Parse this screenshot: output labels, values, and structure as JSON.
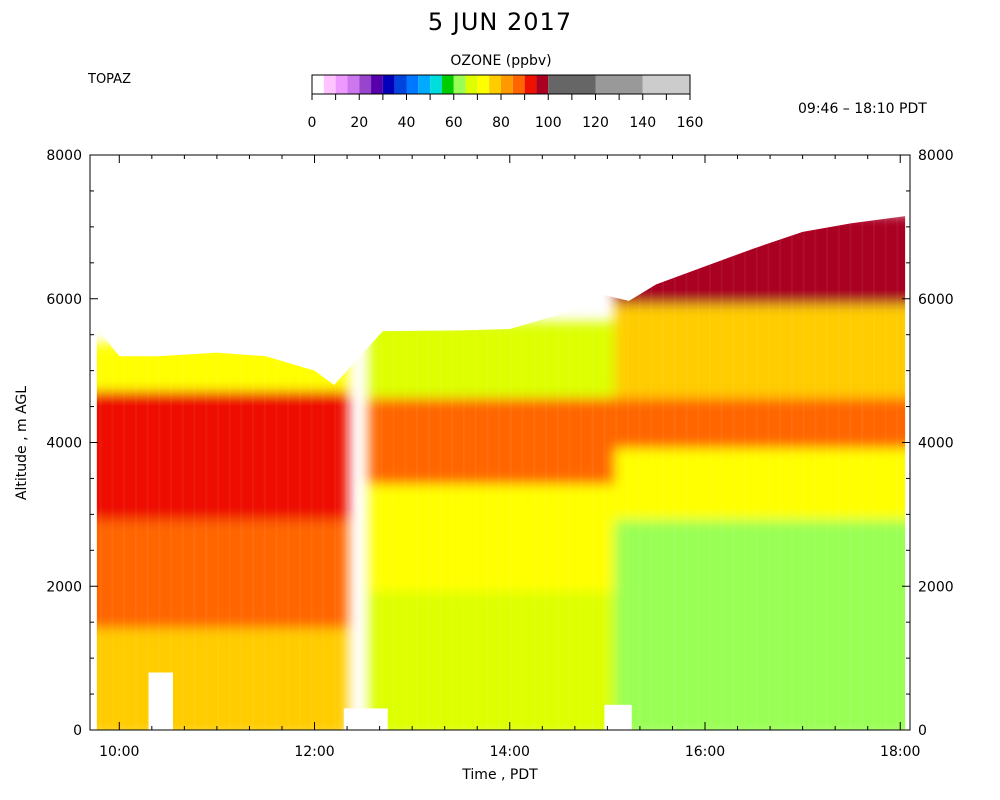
{
  "title": "5 JUN 2017",
  "instrument": "TOPAZ",
  "time_range": "09:46 – 18:10 PDT",
  "colorbar": {
    "title": "OZONE (ppbv)",
    "ticks": [
      0,
      20,
      40,
      60,
      80,
      100,
      120,
      140,
      160
    ],
    "range": [
      0,
      160
    ],
    "bins": [
      {
        "from": 0,
        "to": 5,
        "color": "#ffffff"
      },
      {
        "from": 5,
        "to": 10,
        "color": "#ffc4ff"
      },
      {
        "from": 10,
        "to": 15,
        "color": "#ee99ff"
      },
      {
        "from": 15,
        "to": 20,
        "color": "#cc77ee"
      },
      {
        "from": 20,
        "to": 25,
        "color": "#9944cc"
      },
      {
        "from": 25,
        "to": 30,
        "color": "#5500aa"
      },
      {
        "from": 30,
        "to": 35,
        "color": "#0000bb"
      },
      {
        "from": 35,
        "to": 40,
        "color": "#0044dd"
      },
      {
        "from": 40,
        "to": 45,
        "color": "#0077ff"
      },
      {
        "from": 45,
        "to": 50,
        "color": "#00aaff"
      },
      {
        "from": 50,
        "to": 55,
        "color": "#00dddd"
      },
      {
        "from": 55,
        "to": 60,
        "color": "#00cc00"
      },
      {
        "from": 60,
        "to": 65,
        "color": "#99ff55"
      },
      {
        "from": 65,
        "to": 70,
        "color": "#ddff00"
      },
      {
        "from": 70,
        "to": 75,
        "color": "#ffff00"
      },
      {
        "from": 75,
        "to": 80,
        "color": "#ffcc00"
      },
      {
        "from": 80,
        "to": 85,
        "color": "#ff9900"
      },
      {
        "from": 85,
        "to": 90,
        "color": "#ff6600"
      },
      {
        "from": 90,
        "to": 95,
        "color": "#ee1100"
      },
      {
        "from": 95,
        "to": 100,
        "color": "#aa0022"
      },
      {
        "from": 100,
        "to": 120,
        "color": "#666666"
      },
      {
        "from": 120,
        "to": 140,
        "color": "#999999"
      },
      {
        "from": 140,
        "to": 160,
        "color": "#cccccc"
      }
    ]
  },
  "chart_data": {
    "type": "heatmap",
    "title": "5 JUN 2017",
    "xlabel": "Time , PDT",
    "ylabel": "Altitude , m AGL",
    "x_range_hours": [
      9.7,
      18.1
    ],
    "xlim_labels": [
      "09:46",
      "18:10"
    ],
    "x_ticks": [
      "10:00",
      "12:00",
      "14:00",
      "16:00",
      "18:00"
    ],
    "x_tick_hours": [
      10,
      12,
      14,
      16,
      18
    ],
    "ylim": [
      0,
      8000
    ],
    "y_ticks": [
      0,
      2000,
      4000,
      6000,
      8000
    ],
    "units": "ppbv",
    "profiles": [
      {
        "time": 9.77,
        "top": 5600,
        "bottom": 0
      },
      {
        "time": 10.0,
        "top": 5200,
        "bottom": 0
      },
      {
        "time": 10.4,
        "top": 5200,
        "bottom": 0
      },
      {
        "time": 11.0,
        "top": 5250,
        "bottom": 0
      },
      {
        "time": 11.5,
        "top": 5200,
        "bottom": 0
      },
      {
        "time": 12.0,
        "top": 5000,
        "bottom": 0
      },
      {
        "time": 12.2,
        "top": 4800,
        "bottom": 0
      },
      {
        "time": 12.7,
        "top": 5550,
        "bottom": 0
      },
      {
        "time": 13.5,
        "top": 5560,
        "bottom": 0
      },
      {
        "time": 14.0,
        "top": 5580,
        "bottom": 0
      },
      {
        "time": 14.5,
        "top": 5780,
        "bottom": 0
      },
      {
        "time": 14.97,
        "top": 6050,
        "bottom": 0
      },
      {
        "time": 15.22,
        "top": 5970,
        "bottom": 0
      },
      {
        "time": 15.5,
        "top": 6200,
        "bottom": 0
      },
      {
        "time": 16.0,
        "top": 6450,
        "bottom": 0
      },
      {
        "time": 16.5,
        "top": 6700,
        "bottom": 0
      },
      {
        "time": 17.0,
        "top": 6930,
        "bottom": 0
      },
      {
        "time": 17.5,
        "top": 7050,
        "bottom": 0
      },
      {
        "time": 18.05,
        "top": 7150,
        "bottom": 0
      }
    ],
    "ozone_layers": [
      {
        "segment": "09:46-12:20",
        "altitude_range": [
          0,
          1500
        ],
        "ozone_ppbv": 75
      },
      {
        "segment": "09:46-12:20",
        "altitude_range": [
          1500,
          3000
        ],
        "ozone_ppbv": 85
      },
      {
        "segment": "09:46-12:20",
        "altitude_range": [
          3000,
          4800
        ],
        "ozone_ppbv": 92
      },
      {
        "segment": "09:46-12:20",
        "altitude_range": [
          4800,
          5300
        ],
        "ozone_ppbv": 70
      },
      {
        "segment": "12:42-15:00",
        "altitude_range": [
          0,
          2000
        ],
        "ozone_ppbv": 65
      },
      {
        "segment": "12:42-15:00",
        "altitude_range": [
          2000,
          3500
        ],
        "ozone_ppbv": 72
      },
      {
        "segment": "12:42-15:00",
        "altitude_range": [
          3500,
          4700
        ],
        "ozone_ppbv": 85
      },
      {
        "segment": "12:42-15:00",
        "altitude_range": [
          4700,
          5600
        ],
        "ozone_ppbv": 65
      },
      {
        "segment": "15:20-18:05",
        "altitude_range": [
          0,
          3000
        ],
        "ozone_ppbv": 62
      },
      {
        "segment": "15:20-18:05",
        "altitude_range": [
          3000,
          4000
        ],
        "ozone_ppbv": 72
      },
      {
        "segment": "15:20-18:05",
        "altitude_range": [
          4000,
          4700
        ],
        "ozone_ppbv": 86
      },
      {
        "segment": "15:20-18:05",
        "altitude_range": [
          4700,
          6000
        ],
        "ozone_ppbv": 75
      },
      {
        "segment": "15:20-18:05",
        "altitude_range": [
          6000,
          7100
        ],
        "ozone_ppbv": 95
      }
    ],
    "gaps": [
      {
        "time_range": [
          10.3,
          10.55
        ],
        "altitude_range": [
          0,
          800
        ]
      },
      {
        "time_range": [
          12.3,
          12.75
        ],
        "altitude_range": [
          0,
          300
        ]
      },
      {
        "time_range": [
          14.97,
          15.25
        ],
        "altitude_range": [
          0,
          350
        ]
      }
    ]
  }
}
